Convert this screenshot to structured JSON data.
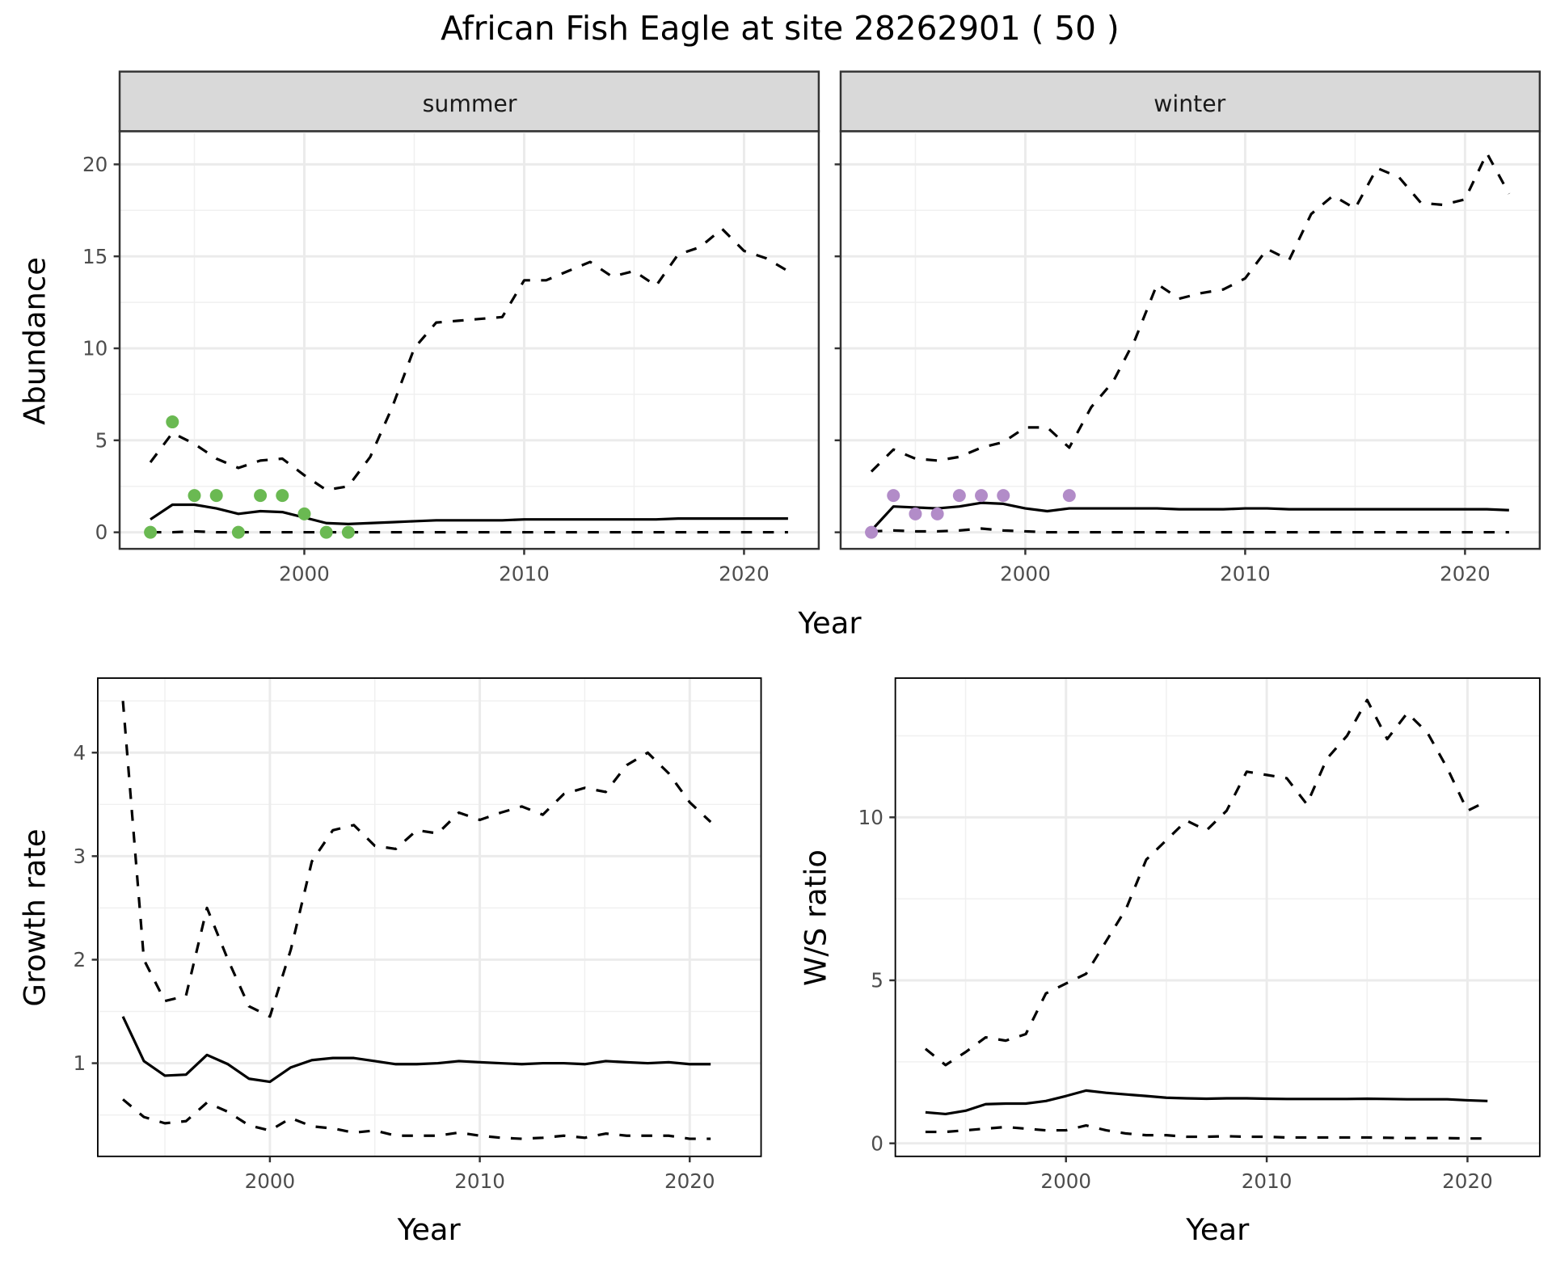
{
  "title": "African Fish Eagle at site 28262901 ( 50 )",
  "chart_data": [
    {
      "type": "line",
      "facet": "summer",
      "xlabel": "Year",
      "ylabel": "Abundance",
      "xlim": [
        1991.6,
        2023.4
      ],
      "ylim": [
        -0.9,
        21.8
      ],
      "xticks": [
        2000,
        2010,
        2020
      ],
      "yticks": [
        0,
        5,
        10,
        15,
        20
      ],
      "grid": true,
      "x": [
        1993,
        1994,
        1995,
        1996,
        1997,
        1998,
        1999,
        2000,
        2001,
        2002,
        2003,
        2004,
        2005,
        2006,
        2007,
        2008,
        2009,
        2010,
        2011,
        2012,
        2013,
        2014,
        2015,
        2016,
        2017,
        2018,
        2019,
        2020,
        2021,
        2022
      ],
      "series": [
        {
          "name": "upper",
          "style": "dashed",
          "values": [
            3.8,
            5.4,
            4.8,
            4.0,
            3.5,
            3.9,
            4.0,
            3.1,
            2.3,
            2.5,
            4.1,
            6.8,
            10.0,
            11.4,
            11.5,
            11.6,
            11.7,
            13.7,
            13.7,
            14.2,
            14.7,
            13.9,
            14.2,
            13.4,
            15.1,
            15.5,
            16.5,
            15.3,
            14.9,
            14.2
          ]
        },
        {
          "name": "mean",
          "style": "solid",
          "values": [
            0.7,
            1.5,
            1.5,
            1.3,
            1.0,
            1.15,
            1.1,
            0.8,
            0.5,
            0.45,
            0.5,
            0.55,
            0.6,
            0.65,
            0.65,
            0.65,
            0.65,
            0.7,
            0.7,
            0.7,
            0.7,
            0.7,
            0.7,
            0.7,
            0.75,
            0.75,
            0.75,
            0.75,
            0.75,
            0.75
          ]
        },
        {
          "name": "lower",
          "style": "dashed",
          "values": [
            0,
            0,
            0.05,
            0,
            0,
            0,
            0,
            0,
            0,
            0,
            0,
            0,
            0,
            0,
            0,
            0,
            0,
            0,
            0,
            0,
            0,
            0,
            0,
            0,
            0,
            0,
            0,
            0,
            0,
            0
          ]
        }
      ],
      "points": {
        "color": "#6ab952",
        "x": [
          1993,
          1994,
          1995,
          1996,
          1997,
          1998,
          1999,
          2000,
          2001,
          2002
        ],
        "y": [
          0,
          6,
          2,
          2,
          0,
          2,
          2,
          1,
          0,
          0
        ]
      }
    },
    {
      "type": "line",
      "facet": "winter",
      "xlabel": "Year",
      "ylabel": "Abundance",
      "xlim": [
        1991.6,
        2023.4
      ],
      "ylim": [
        -0.9,
        21.8
      ],
      "xticks": [
        2000,
        2010,
        2020
      ],
      "yticks": [
        0,
        5,
        10,
        15,
        20
      ],
      "grid": true,
      "x": [
        1993,
        1994,
        1995,
        1996,
        1997,
        1998,
        1999,
        2000,
        2001,
        2002,
        2003,
        2004,
        2005,
        2006,
        2007,
        2008,
        2009,
        2010,
        2011,
        2012,
        2013,
        2014,
        2015,
        2016,
        2017,
        2018,
        2019,
        2020,
        2021,
        2022
      ],
      "series": [
        {
          "name": "upper",
          "style": "dashed",
          "values": [
            3.3,
            4.5,
            4.0,
            3.9,
            4.1,
            4.6,
            4.9,
            5.7,
            5.7,
            4.6,
            6.8,
            8.2,
            10.5,
            13.5,
            12.7,
            13.0,
            13.2,
            13.8,
            15.4,
            14.8,
            17.3,
            18.3,
            17.6,
            19.8,
            19.3,
            17.9,
            17.8,
            18.1,
            20.6,
            18.4
          ]
        },
        {
          "name": "mean",
          "style": "solid",
          "values": [
            0.1,
            1.4,
            1.35,
            1.3,
            1.4,
            1.6,
            1.55,
            1.3,
            1.15,
            1.3,
            1.3,
            1.3,
            1.3,
            1.3,
            1.25,
            1.25,
            1.25,
            1.3,
            1.3,
            1.25,
            1.25,
            1.25,
            1.25,
            1.25,
            1.25,
            1.25,
            1.25,
            1.25,
            1.25,
            1.2
          ]
        },
        {
          "name": "lower",
          "style": "dashed",
          "values": [
            0.05,
            0.1,
            0.05,
            0.05,
            0.1,
            0.2,
            0.1,
            0.05,
            0,
            0,
            0,
            0,
            0,
            0,
            0,
            0,
            0,
            0,
            0,
            0,
            0,
            0,
            0,
            0,
            0,
            0,
            0,
            0,
            0,
            0
          ]
        }
      ],
      "points": {
        "color": "#b28cc8",
        "x": [
          1993,
          1994,
          1995,
          1996,
          1997,
          1998,
          1999,
          2002
        ],
        "y": [
          0,
          2,
          1,
          1,
          2,
          2,
          2,
          2
        ]
      }
    },
    {
      "type": "line",
      "xlabel": "Year",
      "ylabel": "Growth rate",
      "xlim": [
        1991.8,
        2023.4
      ],
      "ylim": [
        0.1,
        4.72
      ],
      "xticks": [
        2000,
        2010,
        2020
      ],
      "yticks": [
        1,
        2,
        3,
        4
      ],
      "grid": true,
      "x": [
        1993,
        1994,
        1995,
        1996,
        1997,
        1998,
        1999,
        2000,
        2001,
        2002,
        2003,
        2004,
        2005,
        2006,
        2007,
        2008,
        2009,
        2010,
        2011,
        2012,
        2013,
        2014,
        2015,
        2016,
        2017,
        2018,
        2019,
        2020,
        2021
      ],
      "series": [
        {
          "name": "upper",
          "style": "dashed",
          "values": [
            4.5,
            2.0,
            1.6,
            1.65,
            2.5,
            2.0,
            1.55,
            1.45,
            2.1,
            2.95,
            3.25,
            3.3,
            3.1,
            3.07,
            3.25,
            3.22,
            3.42,
            3.35,
            3.42,
            3.48,
            3.4,
            3.6,
            3.66,
            3.62,
            3.88,
            4.0,
            3.8,
            3.52,
            3.33
          ]
        },
        {
          "name": "mean",
          "style": "solid",
          "values": [
            1.45,
            1.02,
            0.88,
            0.89,
            1.08,
            0.99,
            0.85,
            0.82,
            0.96,
            1.03,
            1.05,
            1.05,
            1.02,
            0.99,
            0.99,
            1.0,
            1.02,
            1.01,
            1.0,
            0.99,
            1.0,
            1.0,
            0.99,
            1.02,
            1.01,
            1.0,
            1.01,
            0.99,
            0.99
          ]
        },
        {
          "name": "lower",
          "style": "dashed",
          "values": [
            0.65,
            0.48,
            0.42,
            0.44,
            0.62,
            0.53,
            0.4,
            0.35,
            0.47,
            0.39,
            0.37,
            0.33,
            0.35,
            0.3,
            0.3,
            0.3,
            0.33,
            0.3,
            0.28,
            0.27,
            0.28,
            0.3,
            0.28,
            0.32,
            0.3,
            0.3,
            0.3,
            0.27,
            0.27
          ]
        }
      ]
    },
    {
      "type": "line",
      "xlabel": "Year",
      "ylabel": "W/S ratio",
      "xlim": [
        1991.5,
        2023.6
      ],
      "ylim": [
        -0.4,
        14.27
      ],
      "xticks": [
        2000,
        2010,
        2020
      ],
      "yticks": [
        0,
        5,
        10
      ],
      "grid": true,
      "x": [
        1993,
        1994,
        1995,
        1996,
        1997,
        1998,
        1999,
        2000,
        2001,
        2002,
        2003,
        2004,
        2005,
        2006,
        2007,
        2008,
        2009,
        2010,
        2011,
        2012,
        2013,
        2014,
        2015,
        2016,
        2017,
        2018,
        2019,
        2020,
        2021
      ],
      "series": [
        {
          "name": "upper",
          "style": "dashed",
          "values": [
            2.9,
            2.4,
            2.8,
            3.25,
            3.15,
            3.35,
            4.6,
            4.9,
            5.2,
            6.2,
            7.2,
            8.7,
            9.3,
            9.9,
            9.6,
            10.2,
            11.4,
            11.3,
            11.2,
            10.4,
            11.8,
            12.5,
            13.6,
            12.4,
            13.2,
            12.6,
            11.5,
            10.2,
            10.5
          ]
        },
        {
          "name": "mean",
          "style": "solid",
          "values": [
            0.95,
            0.9,
            1.0,
            1.2,
            1.22,
            1.22,
            1.3,
            1.45,
            1.62,
            1.55,
            1.5,
            1.45,
            1.4,
            1.38,
            1.37,
            1.38,
            1.38,
            1.37,
            1.36,
            1.36,
            1.36,
            1.36,
            1.37,
            1.36,
            1.35,
            1.35,
            1.35,
            1.32,
            1.3
          ]
        },
        {
          "name": "lower",
          "style": "dashed",
          "values": [
            0.35,
            0.35,
            0.4,
            0.45,
            0.5,
            0.45,
            0.4,
            0.4,
            0.55,
            0.4,
            0.3,
            0.25,
            0.25,
            0.2,
            0.2,
            0.22,
            0.2,
            0.2,
            0.18,
            0.18,
            0.18,
            0.18,
            0.18,
            0.17,
            0.16,
            0.16,
            0.16,
            0.15,
            0.15
          ]
        }
      ]
    }
  ]
}
